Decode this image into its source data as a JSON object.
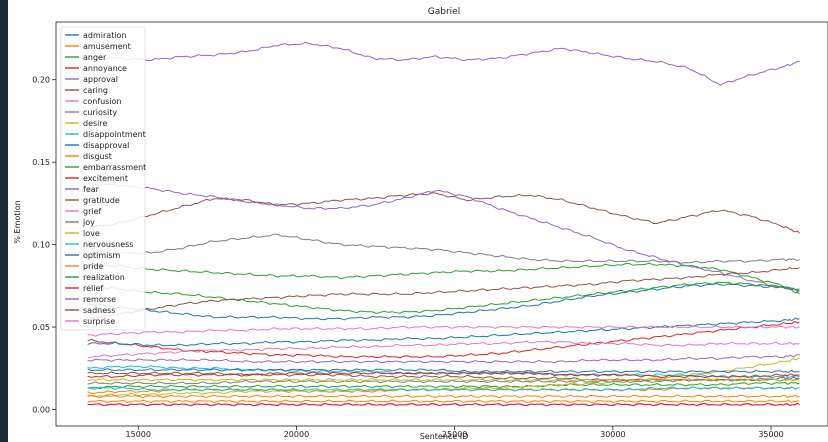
{
  "chart_data": {
    "type": "line",
    "title": "Gabriel",
    "xlabel": "Sentence ID",
    "ylabel": "% Emotion",
    "xlim": [
      12400,
      36800
    ],
    "ylim": [
      -0.01,
      0.235
    ],
    "xticks": [
      {
        "value": 15000,
        "label": "15000"
      },
      {
        "value": 20000,
        "label": "20000"
      },
      {
        "value": 25000,
        "label": "25000"
      },
      {
        "value": 30000,
        "label": "30000"
      },
      {
        "value": 35000,
        "label": "35000"
      }
    ],
    "yticks": [
      {
        "value": 0.0,
        "label": "0.00"
      },
      {
        "value": 0.05,
        "label": "0.05"
      },
      {
        "value": 0.1,
        "label": "0.10"
      },
      {
        "value": 0.15,
        "label": "0.15"
      },
      {
        "value": 0.2,
        "label": "0.20"
      }
    ],
    "legend_position": "top-left",
    "x": [
      13400,
      14400,
      15400,
      16400,
      17400,
      18400,
      19400,
      20400,
      21400,
      22400,
      23400,
      24400,
      25400,
      26400,
      27400,
      28400,
      29400,
      30400,
      31400,
      32400,
      33400,
      34400,
      35400,
      35900
    ],
    "series": [
      {
        "name": "admiration",
        "color": "#1f77b4",
        "values": [
          0.064,
          0.062,
          0.06,
          0.058,
          0.056,
          0.056,
          0.056,
          0.055,
          0.055,
          0.056,
          0.056,
          0.057,
          0.059,
          0.061,
          0.063,
          0.066,
          0.069,
          0.071,
          0.073,
          0.075,
          0.076,
          0.075,
          0.074,
          0.073
        ]
      },
      {
        "name": "amusement",
        "color": "#ff7f0e",
        "values": [
          0.01,
          0.011,
          0.011,
          0.012,
          0.012,
          0.012,
          0.012,
          0.011,
          0.011,
          0.011,
          0.012,
          0.012,
          0.012,
          0.012,
          0.012,
          0.012,
          0.012,
          0.012,
          0.012,
          0.013,
          0.013,
          0.013,
          0.013,
          0.013
        ]
      },
      {
        "name": "anger",
        "color": "#2ca02c",
        "values": [
          0.013,
          0.014,
          0.014,
          0.014,
          0.014,
          0.014,
          0.014,
          0.014,
          0.014,
          0.014,
          0.014,
          0.014,
          0.014,
          0.014,
          0.014,
          0.015,
          0.015,
          0.015,
          0.015,
          0.015,
          0.015,
          0.016,
          0.016,
          0.016
        ]
      },
      {
        "name": "annoyance",
        "color": "#d62728",
        "values": [
          0.042,
          0.04,
          0.038,
          0.036,
          0.035,
          0.034,
          0.033,
          0.033,
          0.032,
          0.032,
          0.032,
          0.032,
          0.033,
          0.034,
          0.036,
          0.038,
          0.04,
          0.042,
          0.044,
          0.046,
          0.048,
          0.05,
          0.052,
          0.053
        ]
      },
      {
        "name": "approval",
        "color": "#9467bd",
        "values": [
          0.214,
          0.213,
          0.212,
          0.214,
          0.215,
          0.217,
          0.221,
          0.222,
          0.219,
          0.213,
          0.212,
          0.214,
          0.212,
          0.213,
          0.216,
          0.219,
          0.216,
          0.213,
          0.211,
          0.207,
          0.197,
          0.203,
          0.208,
          0.211
        ]
      },
      {
        "name": "caring",
        "color": "#8c564b",
        "values": [
          0.11,
          0.113,
          0.118,
          0.123,
          0.128,
          0.127,
          0.124,
          0.125,
          0.127,
          0.128,
          0.13,
          0.131,
          0.127,
          0.129,
          0.13,
          0.127,
          0.122,
          0.117,
          0.113,
          0.117,
          0.121,
          0.117,
          0.111,
          0.107
        ]
      },
      {
        "name": "confusion",
        "color": "#e377c2",
        "values": [
          0.032,
          0.033,
          0.034,
          0.035,
          0.036,
          0.036,
          0.037,
          0.037,
          0.038,
          0.038,
          0.039,
          0.039,
          0.04,
          0.04,
          0.041,
          0.041,
          0.04,
          0.04,
          0.039,
          0.039,
          0.04,
          0.04,
          0.04,
          0.04
        ]
      },
      {
        "name": "curiosity",
        "color": "#7f7f7f",
        "values": [
          0.094,
          0.095,
          0.095,
          0.098,
          0.102,
          0.104,
          0.106,
          0.103,
          0.1,
          0.099,
          0.098,
          0.097,
          0.095,
          0.093,
          0.091,
          0.09,
          0.09,
          0.09,
          0.09,
          0.089,
          0.09,
          0.09,
          0.091,
          0.091
        ]
      },
      {
        "name": "desire",
        "color": "#bcbd22",
        "values": [
          0.008,
          0.009,
          0.009,
          0.01,
          0.01,
          0.011,
          0.011,
          0.011,
          0.011,
          0.012,
          0.012,
          0.012,
          0.013,
          0.013,
          0.014,
          0.015,
          0.016,
          0.017,
          0.019,
          0.021,
          0.023,
          0.026,
          0.029,
          0.031
        ]
      },
      {
        "name": "disappointment",
        "color": "#17becf",
        "values": [
          0.025,
          0.026,
          0.026,
          0.025,
          0.025,
          0.024,
          0.024,
          0.023,
          0.023,
          0.023,
          0.022,
          0.022,
          0.022,
          0.022,
          0.022,
          0.021,
          0.021,
          0.021,
          0.021,
          0.021,
          0.02,
          0.02,
          0.02,
          0.02
        ]
      },
      {
        "name": "disapproval",
        "color": "#1f77b4",
        "values": [
          0.04,
          0.04,
          0.039,
          0.039,
          0.04,
          0.04,
          0.041,
          0.041,
          0.042,
          0.042,
          0.043,
          0.043,
          0.044,
          0.045,
          0.046,
          0.047,
          0.048,
          0.049,
          0.05,
          0.051,
          0.052,
          0.053,
          0.054,
          0.055
        ]
      },
      {
        "name": "disgust",
        "color": "#ff7f0e",
        "values": [
          0.005,
          0.005,
          0.005,
          0.005,
          0.005,
          0.005,
          0.005,
          0.005,
          0.005,
          0.005,
          0.005,
          0.005,
          0.005,
          0.005,
          0.005,
          0.005,
          0.005,
          0.005,
          0.005,
          0.005,
          0.005,
          0.005,
          0.005,
          0.005
        ]
      },
      {
        "name": "embarrassment",
        "color": "#2ca02c",
        "values": [
          0.088,
          0.087,
          0.085,
          0.084,
          0.083,
          0.082,
          0.081,
          0.081,
          0.08,
          0.081,
          0.082,
          0.083,
          0.084,
          0.084,
          0.085,
          0.086,
          0.087,
          0.088,
          0.088,
          0.087,
          0.085,
          0.08,
          0.075,
          0.07
        ]
      },
      {
        "name": "excitement",
        "color": "#d62728",
        "values": [
          0.02,
          0.02,
          0.021,
          0.021,
          0.021,
          0.021,
          0.022,
          0.022,
          0.022,
          0.022,
          0.022,
          0.022,
          0.022,
          0.022,
          0.022,
          0.021,
          0.021,
          0.021,
          0.02,
          0.02,
          0.02,
          0.02,
          0.021,
          0.021
        ]
      },
      {
        "name": "fear",
        "color": "#9467bd",
        "values": [
          0.137,
          0.136,
          0.134,
          0.131,
          0.129,
          0.126,
          0.124,
          0.122,
          0.122,
          0.124,
          0.128,
          0.133,
          0.129,
          0.122,
          0.116,
          0.11,
          0.104,
          0.097,
          0.092,
          0.087,
          0.083,
          0.078,
          0.074,
          0.072
        ]
      },
      {
        "name": "gratitude",
        "color": "#8c564b",
        "values": [
          0.022,
          0.022,
          0.022,
          0.022,
          0.022,
          0.021,
          0.021,
          0.021,
          0.021,
          0.02,
          0.02,
          0.02,
          0.02,
          0.019,
          0.019,
          0.019,
          0.018,
          0.018,
          0.018,
          0.018,
          0.018,
          0.018,
          0.019,
          0.019
        ]
      },
      {
        "name": "grief",
        "color": "#e377c2",
        "values": [
          0.003,
          0.003,
          0.003,
          0.003,
          0.003,
          0.003,
          0.003,
          0.003,
          0.003,
          0.003,
          0.003,
          0.003,
          0.003,
          0.003,
          0.003,
          0.003,
          0.003,
          0.003,
          0.003,
          0.003,
          0.003,
          0.003,
          0.003,
          0.003
        ]
      },
      {
        "name": "joy",
        "color": "#7f7f7f",
        "values": [
          0.016,
          0.016,
          0.016,
          0.016,
          0.016,
          0.017,
          0.017,
          0.017,
          0.017,
          0.017,
          0.017,
          0.017,
          0.017,
          0.017,
          0.017,
          0.017,
          0.017,
          0.017,
          0.017,
          0.018,
          0.018,
          0.018,
          0.018,
          0.018
        ]
      },
      {
        "name": "love",
        "color": "#bcbd22",
        "values": [
          0.018,
          0.018,
          0.018,
          0.018,
          0.018,
          0.018,
          0.018,
          0.018,
          0.018,
          0.018,
          0.018,
          0.018,
          0.018,
          0.018,
          0.018,
          0.018,
          0.018,
          0.018,
          0.018,
          0.018,
          0.018,
          0.018,
          0.018,
          0.018
        ]
      },
      {
        "name": "nervousness",
        "color": "#17becf",
        "values": [
          0.013,
          0.013,
          0.012,
          0.012,
          0.012,
          0.012,
          0.012,
          0.012,
          0.012,
          0.012,
          0.012,
          0.012,
          0.012,
          0.012,
          0.012,
          0.012,
          0.012,
          0.012,
          0.013,
          0.013,
          0.013,
          0.013,
          0.013,
          0.013
        ]
      },
      {
        "name": "optimism",
        "color": "#1f77b4",
        "values": [
          0.024,
          0.024,
          0.024,
          0.024,
          0.024,
          0.024,
          0.024,
          0.024,
          0.024,
          0.024,
          0.024,
          0.024,
          0.023,
          0.023,
          0.023,
          0.023,
          0.023,
          0.023,
          0.023,
          0.023,
          0.023,
          0.023,
          0.023,
          0.023
        ]
      },
      {
        "name": "pride",
        "color": "#ff7f0e",
        "values": [
          0.008,
          0.008,
          0.008,
          0.008,
          0.008,
          0.008,
          0.008,
          0.008,
          0.008,
          0.008,
          0.008,
          0.008,
          0.008,
          0.008,
          0.008,
          0.008,
          0.008,
          0.008,
          0.008,
          0.008,
          0.008,
          0.008,
          0.008,
          0.008
        ]
      },
      {
        "name": "realization",
        "color": "#2ca02c",
        "values": [
          0.075,
          0.073,
          0.071,
          0.07,
          0.068,
          0.066,
          0.064,
          0.062,
          0.06,
          0.059,
          0.059,
          0.06,
          0.062,
          0.064,
          0.066,
          0.068,
          0.07,
          0.072,
          0.074,
          0.076,
          0.077,
          0.076,
          0.074,
          0.072
        ]
      },
      {
        "name": "relief",
        "color": "#d62728",
        "values": [
          0.003,
          0.003,
          0.003,
          0.003,
          0.003,
          0.003,
          0.003,
          0.003,
          0.003,
          0.003,
          0.003,
          0.003,
          0.003,
          0.003,
          0.003,
          0.003,
          0.003,
          0.003,
          0.003,
          0.003,
          0.003,
          0.003,
          0.003,
          0.003
        ]
      },
      {
        "name": "remorse",
        "color": "#9467bd",
        "values": [
          0.03,
          0.03,
          0.03,
          0.03,
          0.03,
          0.029,
          0.029,
          0.029,
          0.029,
          0.029,
          0.029,
          0.029,
          0.029,
          0.029,
          0.029,
          0.029,
          0.03,
          0.03,
          0.03,
          0.031,
          0.031,
          0.032,
          0.032,
          0.033
        ]
      },
      {
        "name": "sadness",
        "color": "#8c564b",
        "values": [
          0.055,
          0.058,
          0.061,
          0.064,
          0.066,
          0.067,
          0.068,
          0.069,
          0.07,
          0.07,
          0.07,
          0.071,
          0.072,
          0.073,
          0.074,
          0.075,
          0.076,
          0.078,
          0.079,
          0.08,
          0.082,
          0.083,
          0.085,
          0.086
        ]
      },
      {
        "name": "surprise",
        "color": "#e377c2",
        "values": [
          0.045,
          0.046,
          0.047,
          0.047,
          0.048,
          0.048,
          0.049,
          0.049,
          0.049,
          0.049,
          0.05,
          0.05,
          0.05,
          0.05,
          0.05,
          0.05,
          0.05,
          0.05,
          0.05,
          0.05,
          0.05,
          0.05,
          0.05,
          0.05
        ]
      }
    ]
  }
}
